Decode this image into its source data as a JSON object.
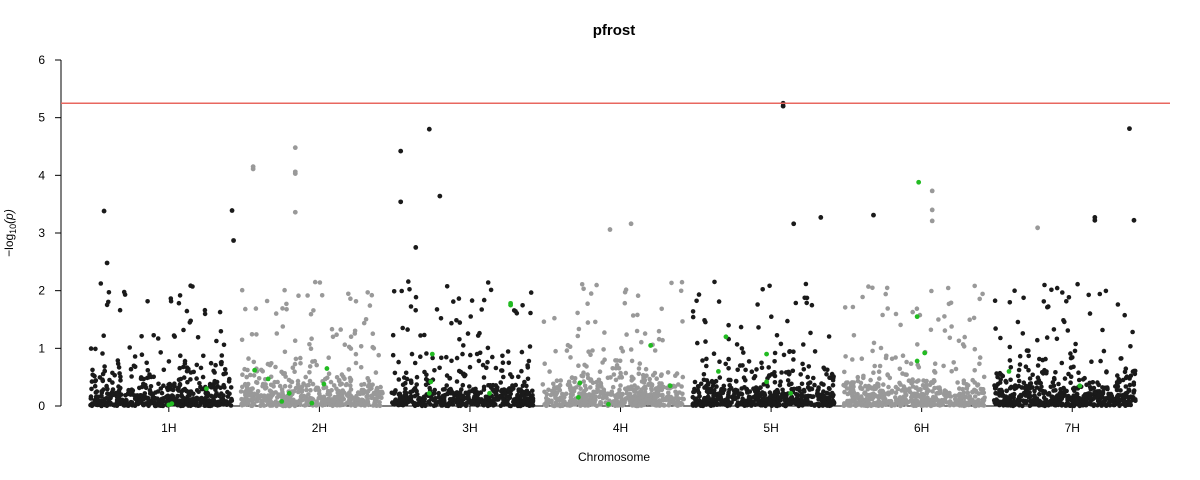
{
  "chart_data": {
    "type": "scatter",
    "title": "pfrost",
    "xlabel": "Chromosome",
    "ylabel_main": "−log",
    "ylabel_sub": "10",
    "ylabel_tail": "(p)",
    "ylim": [
      0,
      6
    ],
    "yticks": [
      0,
      1,
      2,
      3,
      4,
      5,
      6
    ],
    "threshold": 5.25,
    "colors": {
      "odd": "#1a1a1a",
      "even": "#999999",
      "highlight": "#22bb22",
      "threshold": "#e8675f"
    },
    "chromosomes": [
      {
        "name": "1H",
        "start": 0,
        "end": 100
      },
      {
        "name": "2H",
        "start": 100,
        "end": 200
      },
      {
        "name": "3H",
        "start": 200,
        "end": 300
      },
      {
        "name": "4H",
        "start": 300,
        "end": 400
      },
      {
        "name": "5H",
        "start": 400,
        "end": 500
      },
      {
        "name": "6H",
        "start": 500,
        "end": 600
      },
      {
        "name": "7H",
        "start": 600,
        "end": 700
      }
    ],
    "notable_points": [
      {
        "chrom": "1H",
        "x": 12,
        "y": 3.38
      },
      {
        "chrom": "1H",
        "x": 14,
        "y": 2.48
      },
      {
        "chrom": "1H",
        "x": 97,
        "y": 3.39
      },
      {
        "chrom": "1H",
        "x": 98,
        "y": 2.87
      },
      {
        "chrom": "2H",
        "x": 111,
        "y": 4.15
      },
      {
        "chrom": "2H",
        "x": 111,
        "y": 4.11
      },
      {
        "chrom": "2H",
        "x": 139,
        "y": 4.48
      },
      {
        "chrom": "2H",
        "x": 139,
        "y": 4.06
      },
      {
        "chrom": "2H",
        "x": 139,
        "y": 4.03
      },
      {
        "chrom": "2H",
        "x": 139,
        "y": 3.36
      },
      {
        "chrom": "3H",
        "x": 209,
        "y": 4.42
      },
      {
        "chrom": "3H",
        "x": 209,
        "y": 3.54
      },
      {
        "chrom": "3H",
        "x": 228,
        "y": 4.8
      },
      {
        "chrom": "3H",
        "x": 235,
        "y": 3.64
      },
      {
        "chrom": "3H",
        "x": 219,
        "y": 2.75
      },
      {
        "chrom": "4H",
        "x": 348,
        "y": 3.06
      },
      {
        "chrom": "4H",
        "x": 362,
        "y": 3.16
      },
      {
        "chrom": "5H",
        "x": 463,
        "y": 5.25
      },
      {
        "chrom": "5H",
        "x": 463,
        "y": 5.2
      },
      {
        "chrom": "5H",
        "x": 470,
        "y": 3.16
      },
      {
        "chrom": "5H",
        "x": 488,
        "y": 3.27
      },
      {
        "chrom": "5H",
        "x": 523,
        "y": 3.31
      },
      {
        "chrom": "6H",
        "x": 562,
        "y": 3.73
      },
      {
        "chrom": "6H",
        "x": 562,
        "y": 3.4
      },
      {
        "chrom": "6H",
        "x": 562,
        "y": 3.21
      },
      {
        "chrom": "6H",
        "x": 632,
        "y": 3.09
      },
      {
        "chrom": "7H",
        "x": 693,
        "y": 4.81
      },
      {
        "chrom": "7H",
        "x": 670,
        "y": 3.27
      },
      {
        "chrom": "7H",
        "x": 670,
        "y": 3.22
      },
      {
        "chrom": "7H",
        "x": 696,
        "y": 3.22
      }
    ],
    "highlight_points": [
      {
        "x": 55,
        "y": 0.02
      },
      {
        "x": 57,
        "y": 0.04
      },
      {
        "x": 80,
        "y": 0.3
      },
      {
        "x": 112,
        "y": 0.62
      },
      {
        "x": 121,
        "y": 0.47
      },
      {
        "x": 130,
        "y": 0.08
      },
      {
        "x": 135,
        "y": 0.22
      },
      {
        "x": 150,
        "y": 0.05
      },
      {
        "x": 160,
        "y": 0.65
      },
      {
        "x": 158,
        "y": 0.38
      },
      {
        "x": 230,
        "y": 0.9
      },
      {
        "x": 229,
        "y": 0.42
      },
      {
        "x": 228,
        "y": 0.22
      },
      {
        "x": 268,
        "y": 0.22
      },
      {
        "x": 282,
        "y": 1.75
      },
      {
        "x": 282,
        "y": 1.78
      },
      {
        "x": 328,
        "y": 0.4
      },
      {
        "x": 327,
        "y": 0.15
      },
      {
        "x": 347,
        "y": 0.03
      },
      {
        "x": 375,
        "y": 1.05
      },
      {
        "x": 388,
        "y": 0.35
      },
      {
        "x": 420,
        "y": 0.6
      },
      {
        "x": 425,
        "y": 1.2
      },
      {
        "x": 452,
        "y": 0.9
      },
      {
        "x": 452,
        "y": 0.42
      },
      {
        "x": 468,
        "y": 0.22
      },
      {
        "x": 553,
        "y": 3.88
      },
      {
        "x": 552,
        "y": 1.55
      },
      {
        "x": 557,
        "y": 0.92
      },
      {
        "x": 552,
        "y": 0.78
      },
      {
        "x": 613,
        "y": 0.6
      },
      {
        "x": 660,
        "y": 0.35
      }
    ],
    "background_scatter": {
      "points_per_chromosome": 520,
      "typical_max": 1.8,
      "seed": 7
    }
  }
}
